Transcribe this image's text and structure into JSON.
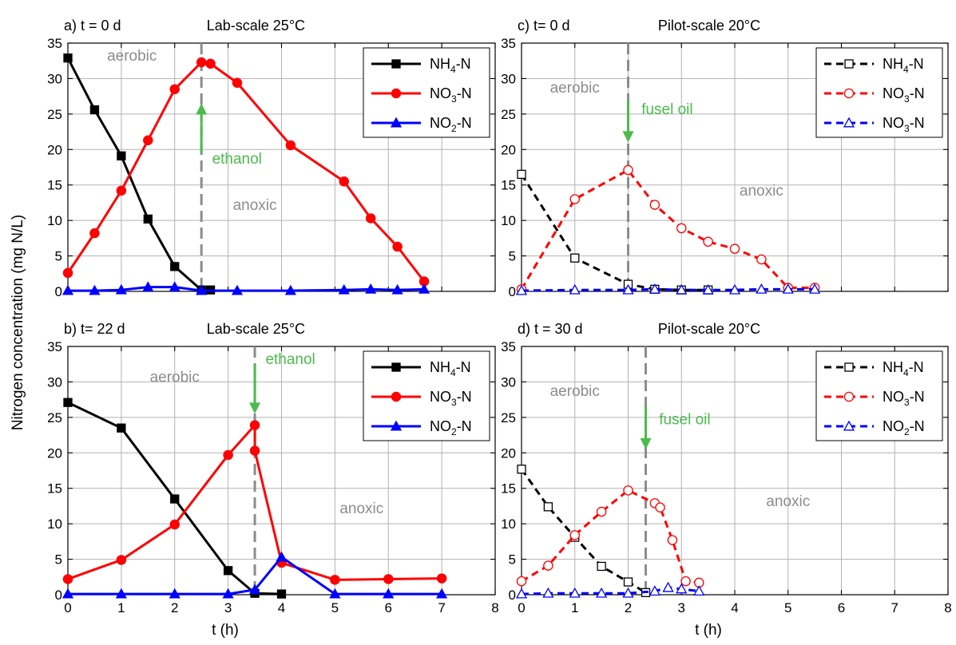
{
  "figure": {
    "ylabel": "Nitrogen concentration (mg N/L)",
    "xlabel": "t (h)"
  },
  "chart_data": [
    {
      "type": "line",
      "panel_label": "a) t = 0 d",
      "title": "Lab-scale 25°C",
      "xlim": [
        0,
        8
      ],
      "ylim": [
        0,
        35
      ],
      "xticks": [
        0,
        1,
        2,
        3,
        4,
        5,
        6,
        7,
        8
      ],
      "yticks": [
        0,
        5,
        10,
        15,
        20,
        25,
        30,
        35
      ],
      "show_xtick_labels": false,
      "grid": true,
      "legend_position": "top-right",
      "series": [
        {
          "name": "NH4-N",
          "color": "#000000",
          "dash": "solid",
          "marker": "square",
          "filled": true,
          "x": [
            0,
            0.5,
            1,
            1.5,
            2,
            2.5,
            2.67
          ],
          "y": [
            32.9,
            25.6,
            19.1,
            10.2,
            3.5,
            0.2,
            0.2
          ]
        },
        {
          "name": "NO3-N",
          "color": "#ff0000",
          "dash": "solid",
          "marker": "circle",
          "filled": true,
          "x": [
            0,
            0.5,
            1,
            1.5,
            2,
            2.5,
            2.67,
            3.17,
            4.17,
            5.17,
            5.67,
            6.17,
            6.67
          ],
          "y": [
            2.6,
            8.2,
            14.2,
            21.3,
            28.5,
            32.3,
            32.1,
            29.4,
            20.6,
            15.5,
            10.3,
            6.3,
            1.4
          ]
        },
        {
          "name": "NO2-N",
          "color": "#0000ff",
          "dash": "solid",
          "marker": "triangle",
          "filled": true,
          "x": [
            0,
            0.5,
            1,
            1.5,
            2,
            2.5,
            3.17,
            4.17,
            5.17,
            5.67,
            6.17,
            6.67
          ],
          "y": [
            0.1,
            0.1,
            0.2,
            0.6,
            0.6,
            0.1,
            0.1,
            0.1,
            0.2,
            0.3,
            0.2,
            0.3
          ]
        }
      ],
      "legend": [
        {
          "label": "NH",
          "sub": "4",
          "suffix": "-N"
        },
        {
          "label": "NO",
          "sub": "3",
          "suffix": "-N"
        },
        {
          "label": "NO",
          "sub": "2",
          "suffix": "-N"
        }
      ],
      "vline_x": 2.5,
      "arrow": {
        "x": 2.5,
        "from_y": 19.5,
        "to_y": 26.5,
        "direction": "up",
        "label": "ethanol",
        "label_x": 2.7,
        "label_y": 18
      },
      "annotations": [
        {
          "text": "aerobic",
          "x": 1.2,
          "y": 32.5
        },
        {
          "text": "anoxic",
          "x": 3.5,
          "y": 11.5
        }
      ]
    },
    {
      "type": "line",
      "panel_label": "c) t= 0 d",
      "title": "Pilot-scale 20°C",
      "xlim": [
        0,
        8
      ],
      "ylim": [
        0,
        35
      ],
      "xticks": [
        0,
        1,
        2,
        3,
        4,
        5,
        6,
        7,
        8
      ],
      "yticks": [
        0,
        5,
        10,
        15,
        20,
        25,
        30,
        35
      ],
      "show_xtick_labels": false,
      "grid": true,
      "legend_position": "top-right",
      "series": [
        {
          "name": "NH4-N",
          "color": "#000000",
          "dash": "dashed",
          "marker": "square",
          "filled": false,
          "x": [
            0,
            1,
            2,
            2.5,
            3,
            3.5
          ],
          "y": [
            16.5,
            4.7,
            1.0,
            0.3,
            0.2,
            0.2
          ]
        },
        {
          "name": "NO3-N",
          "color": "#ff0000",
          "dash": "dashed",
          "marker": "circle",
          "filled": false,
          "x": [
            0,
            1,
            2,
            2.5,
            3,
            3.5,
            4,
            4.5,
            5,
            5.5
          ],
          "y": [
            0.3,
            13.0,
            17.1,
            12.2,
            8.9,
            7.0,
            6.0,
            4.5,
            0.5,
            0.5
          ]
        },
        {
          "name": "NO3-N",
          "color": "#0000ff",
          "dash": "dashed",
          "marker": "triangle",
          "filled": false,
          "x": [
            0,
            1,
            2,
            2.5,
            3,
            3.5,
            4,
            4.5,
            5,
            5.5
          ],
          "y": [
            0.1,
            0.2,
            0.2,
            0.3,
            0.2,
            0.2,
            0.2,
            0.3,
            0.3,
            0.3
          ]
        }
      ],
      "legend": [
        {
          "label": "NH",
          "sub": "4",
          "suffix": "-N"
        },
        {
          "label": "NO",
          "sub": "3",
          "suffix": "-N"
        },
        {
          "label": "NO",
          "sub": "3",
          "suffix": "-N"
        }
      ],
      "vline_x": 2.0,
      "arrow": {
        "x": 2.0,
        "from_y": 27,
        "to_y": 21,
        "direction": "down",
        "label": "fusel oil",
        "label_x": 2.25,
        "label_y": 25
      },
      "annotations": [
        {
          "text": "aerobic",
          "x": 1.0,
          "y": 28
        },
        {
          "text": "anoxic",
          "x": 4.5,
          "y": 13.5
        }
      ]
    },
    {
      "type": "line",
      "panel_label": "b) t= 22 d",
      "title": "Lab-scale 25°C",
      "xlim": [
        0,
        8
      ],
      "ylim": [
        0,
        35
      ],
      "xticks": [
        0,
        1,
        2,
        3,
        4,
        5,
        6,
        7,
        8
      ],
      "yticks": [
        0,
        5,
        10,
        15,
        20,
        25,
        30,
        35
      ],
      "show_xtick_labels": true,
      "grid": true,
      "legend_position": "top-right",
      "series": [
        {
          "name": "NH4-N",
          "color": "#000000",
          "dash": "solid",
          "marker": "square",
          "filled": true,
          "x": [
            0,
            1,
            2,
            3,
            3.5,
            4
          ],
          "y": [
            27.1,
            23.5,
            13.5,
            3.4,
            0.2,
            0.1
          ]
        },
        {
          "name": "NO3-N",
          "color": "#ff0000",
          "dash": "solid",
          "marker": "circle",
          "filled": true,
          "x": [
            0,
            1,
            2,
            3,
            3.5,
            3.5,
            4,
            5,
            6,
            7
          ],
          "y": [
            2.2,
            4.9,
            9.9,
            19.7,
            23.9,
            20.3,
            4.5,
            2.1,
            2.2,
            2.3
          ]
        },
        {
          "name": "NO2-N",
          "color": "#0000ff",
          "dash": "solid",
          "marker": "triangle",
          "filled": true,
          "x": [
            0,
            1,
            2,
            3,
            3.5,
            4,
            5,
            6,
            7
          ],
          "y": [
            0.1,
            0.1,
            0.1,
            0.1,
            0.7,
            5.3,
            0.1,
            0.1,
            0.1
          ]
        }
      ],
      "legend": [
        {
          "label": "NH",
          "sub": "4",
          "suffix": "-N"
        },
        {
          "label": "NO",
          "sub": "3",
          "suffix": "-N"
        },
        {
          "label": "NO",
          "sub": "2",
          "suffix": "-N"
        }
      ],
      "vline_x": 3.5,
      "arrow": {
        "x": 3.5,
        "from_y": 32.5,
        "to_y": 25.5,
        "direction": "down",
        "label": "ethanol",
        "label_x": 3.7,
        "label_y": 32.5
      },
      "annotations": [
        {
          "text": "aerobic",
          "x": 2.0,
          "y": 30
        },
        {
          "text": "anoxic",
          "x": 5.5,
          "y": 11.5
        }
      ]
    },
    {
      "type": "line",
      "panel_label": "d) t = 30 d",
      "title": "Pilot-scale 20°C",
      "xlim": [
        0,
        8
      ],
      "ylim": [
        0,
        35
      ],
      "xticks": [
        0,
        1,
        2,
        3,
        4,
        5,
        6,
        7,
        8
      ],
      "yticks": [
        0,
        5,
        10,
        15,
        20,
        25,
        30,
        35
      ],
      "show_xtick_labels": true,
      "grid": true,
      "legend_position": "top-right",
      "series": [
        {
          "name": "NH4-N",
          "color": "#000000",
          "dash": "dashed",
          "marker": "square",
          "filled": false,
          "x": [
            0,
            0.5,
            1,
            1.5,
            2,
            2.33
          ],
          "y": [
            17.7,
            12.4,
            8.1,
            4.0,
            1.8,
            0.3
          ]
        },
        {
          "name": "NO3-N",
          "color": "#ff0000",
          "dash": "dashed",
          "marker": "circle",
          "filled": false,
          "x": [
            0,
            0.5,
            1,
            1.5,
            2,
            2.5,
            2.6,
            2.83,
            3.08,
            3.33
          ],
          "y": [
            1.9,
            4.1,
            8.4,
            11.7,
            14.7,
            12.9,
            12.3,
            7.7,
            1.9,
            1.7
          ]
        },
        {
          "name": "NO2-N",
          "color": "#0000ff",
          "dash": "dashed",
          "marker": "triangle",
          "filled": false,
          "x": [
            0,
            0.5,
            1,
            1.5,
            2,
            2.5,
            2.75,
            3.0,
            3.33
          ],
          "y": [
            0.1,
            0.2,
            0.2,
            0.2,
            0.2,
            0.5,
            1.0,
            0.8,
            0.5
          ]
        }
      ],
      "legend": [
        {
          "label": "NH",
          "sub": "4",
          "suffix": "-N"
        },
        {
          "label": "NO",
          "sub": "3",
          "suffix": "-N"
        },
        {
          "label": "NO",
          "sub": "2",
          "suffix": "-N"
        }
      ],
      "vline_x": 2.33,
      "arrow": {
        "x": 2.33,
        "from_y": 26.5,
        "to_y": 20.5,
        "direction": "down",
        "label": "fusel oil",
        "label_x": 2.58,
        "label_y": 24
      },
      "annotations": [
        {
          "text": "aerobic",
          "x": 1.0,
          "y": 28
        },
        {
          "text": "anoxic",
          "x": 5.0,
          "y": 12.5
        }
      ]
    }
  ]
}
